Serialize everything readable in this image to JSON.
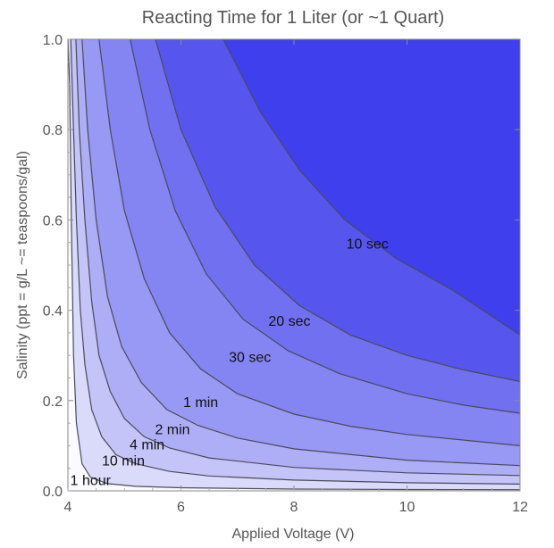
{
  "chart_data": {
    "type": "contour",
    "title": "Reacting Time for 1 Liter (or ~1 Quart)",
    "xlabel": "Applied Voltage (V)",
    "ylabel": "Salinity (ppt = g/L ~= teaspoons/gal)",
    "xlim": [
      4,
      12
    ],
    "ylim": [
      0,
      1.0
    ],
    "x_ticks": [
      "4",
      "6",
      "8",
      "10",
      "12"
    ],
    "y_ticks": [
      "0.0",
      "0.2",
      "0.4",
      "0.6",
      "0.8",
      "1.0"
    ],
    "contours": [
      {
        "label": "1 hour",
        "label_pos": [
          4.4,
          0.025
        ],
        "points": [
          [
            4.0,
            1.0
          ],
          [
            4.03,
            0.9
          ],
          [
            4.06,
            0.6
          ],
          [
            4.1,
            0.3
          ],
          [
            4.15,
            0.15
          ],
          [
            4.25,
            0.06
          ],
          [
            4.4,
            0.03
          ],
          [
            4.7,
            0.016
          ],
          [
            5.2,
            0.01
          ],
          [
            6,
            0.007
          ],
          [
            8,
            0.004
          ],
          [
            10,
            0.003
          ],
          [
            12,
            0.0026
          ]
        ]
      },
      {
        "label": "10 min",
        "label_pos": [
          4.98,
          0.068
        ],
        "points": [
          [
            4.05,
            1.0
          ],
          [
            4.1,
            0.8
          ],
          [
            4.15,
            0.6
          ],
          [
            4.22,
            0.4
          ],
          [
            4.3,
            0.28
          ],
          [
            4.42,
            0.18
          ],
          [
            4.6,
            0.12
          ],
          [
            4.85,
            0.08
          ],
          [
            5.2,
            0.06
          ],
          [
            5.8,
            0.043
          ],
          [
            6.5,
            0.033
          ],
          [
            8,
            0.024
          ],
          [
            10,
            0.018
          ],
          [
            12,
            0.015
          ]
        ]
      },
      {
        "label": "4 min",
        "label_pos": [
          5.4,
          0.104
        ],
        "points": [
          [
            4.14,
            1.0
          ],
          [
            4.2,
            0.8
          ],
          [
            4.3,
            0.6
          ],
          [
            4.42,
            0.42
          ],
          [
            4.55,
            0.3
          ],
          [
            4.75,
            0.22
          ],
          [
            5.0,
            0.16
          ],
          [
            5.35,
            0.12
          ],
          [
            5.8,
            0.095
          ],
          [
            6.5,
            0.073
          ],
          [
            8,
            0.052
          ],
          [
            10,
            0.04
          ],
          [
            12,
            0.034
          ]
        ]
      },
      {
        "label": "2 min",
        "label_pos": [
          5.85,
          0.137
        ],
        "points": [
          [
            4.25,
            1.0
          ],
          [
            4.35,
            0.8
          ],
          [
            4.5,
            0.6
          ],
          [
            4.7,
            0.43
          ],
          [
            4.95,
            0.32
          ],
          [
            5.3,
            0.24
          ],
          [
            5.75,
            0.18
          ],
          [
            6.3,
            0.145
          ],
          [
            7,
            0.117
          ],
          [
            8,
            0.093
          ],
          [
            10,
            0.068
          ],
          [
            12,
            0.056
          ]
        ]
      },
      {
        "label": "1 min",
        "label_pos": [
          6.35,
          0.198
        ],
        "points": [
          [
            4.55,
            1.0
          ],
          [
            4.75,
            0.8
          ],
          [
            5.0,
            0.62
          ],
          [
            5.35,
            0.47
          ],
          [
            5.8,
            0.35
          ],
          [
            6.35,
            0.27
          ],
          [
            7,
            0.215
          ],
          [
            8,
            0.17
          ],
          [
            9,
            0.143
          ],
          [
            10,
            0.125
          ],
          [
            12,
            0.1
          ]
        ]
      },
      {
        "label": "30 sec",
        "label_pos": [
          7.22,
          0.297
        ],
        "points": [
          [
            5.1,
            1.0
          ],
          [
            5.45,
            0.8
          ],
          [
            5.9,
            0.62
          ],
          [
            6.45,
            0.48
          ],
          [
            7.1,
            0.38
          ],
          [
            7.9,
            0.31
          ],
          [
            8.8,
            0.26
          ],
          [
            10,
            0.215
          ],
          [
            11,
            0.19
          ],
          [
            12,
            0.172
          ]
        ]
      },
      {
        "label": "20 sec",
        "label_pos": [
          7.92,
          0.377
        ],
        "points": [
          [
            5.55,
            1.0
          ],
          [
            6.0,
            0.8
          ],
          [
            6.6,
            0.63
          ],
          [
            7.3,
            0.5
          ],
          [
            8.1,
            0.41
          ],
          [
            9,
            0.345
          ],
          [
            10,
            0.3
          ],
          [
            11,
            0.268
          ],
          [
            12,
            0.242
          ]
        ]
      },
      {
        "label": "10 sec",
        "label_pos": [
          9.3,
          0.548
        ],
        "points": [
          [
            6.75,
            1.0
          ],
          [
            7.4,
            0.84
          ],
          [
            8.1,
            0.71
          ],
          [
            8.9,
            0.6
          ],
          [
            9.8,
            0.515
          ],
          [
            10.8,
            0.445
          ],
          [
            12,
            0.345
          ]
        ]
      }
    ]
  }
}
